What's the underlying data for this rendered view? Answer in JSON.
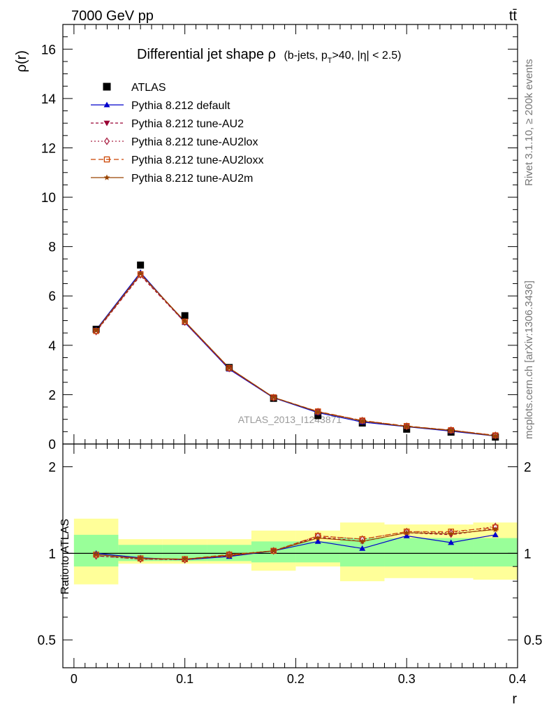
{
  "header": {
    "energy": "7000 GeV pp",
    "process": "tt̄",
    "side_rivet": "Rivet 3.1.10, ≥ 200k events",
    "side_mcplots": "mcplots.cern.ch [arXiv:1306.3436]",
    "watermark": "ATLAS_2013_I1243871"
  },
  "chart_data": {
    "type": "line",
    "title_main": "Differential jet shape ρ",
    "title_detail": "(b-jets, p",
    "title_sub": "T",
    "title_tail": ">40, |η| < 2.5)",
    "ylabel": "ρ(r)",
    "xlabel": "r",
    "ratio_ylabel": "Ratio to ATLAS",
    "xlim": [
      -0.01,
      0.4
    ],
    "ylim": [
      0,
      17
    ],
    "ratio_ylim": [
      0.4,
      2.4
    ],
    "grid": false,
    "legend_position": "top-left",
    "x_ticks": [
      "0",
      "0.1",
      "0.2",
      "0.3",
      "0.4"
    ],
    "y_ticks": [
      "0",
      "2",
      "4",
      "6",
      "8",
      "10",
      "12",
      "14",
      "16"
    ],
    "ratio_y_ticks": [
      "0.5",
      "1",
      "2"
    ],
    "x": [
      0.02,
      0.06,
      0.1,
      0.14,
      0.18,
      0.22,
      0.26,
      0.3,
      0.34,
      0.38
    ],
    "bin_edges": [
      0,
      0.04,
      0.08,
      0.12,
      0.16,
      0.2,
      0.24,
      0.28,
      0.32,
      0.36,
      0.4
    ],
    "data_series": {
      "name": "ATLAS",
      "values": [
        4.65,
        7.25,
        5.2,
        3.1,
        1.85,
        1.15,
        0.85,
        0.6,
        0.48,
        0.28
      ],
      "band_inner": [
        [
          0.9,
          1.16
        ],
        [
          0.94,
          1.07
        ],
        [
          0.94,
          1.07
        ],
        [
          0.94,
          1.07
        ],
        [
          0.93,
          1.1
        ],
        [
          0.93,
          1.1
        ],
        [
          0.9,
          1.13
        ],
        [
          0.9,
          1.13
        ],
        [
          0.9,
          1.13
        ],
        [
          0.9,
          1.13
        ]
      ],
      "band_outer": [
        [
          0.78,
          1.32
        ],
        [
          0.92,
          1.12
        ],
        [
          0.92,
          1.12
        ],
        [
          0.92,
          1.12
        ],
        [
          0.87,
          1.2
        ],
        [
          0.9,
          1.2
        ],
        [
          0.8,
          1.28
        ],
        [
          0.82,
          1.26
        ],
        [
          0.82,
          1.26
        ],
        [
          0.81,
          1.28
        ]
      ]
    },
    "series": [
      {
        "name": "Pythia 8.212 default",
        "color": "#0000cc",
        "dash": "",
        "marker": "triangle-up",
        "values": [
          4.63,
          6.95,
          4.92,
          3.03,
          1.87,
          1.27,
          0.89,
          0.7,
          0.52,
          0.32
        ],
        "ratio": [
          1.0,
          0.965,
          0.95,
          0.975,
          1.02,
          1.1,
          1.04,
          1.15,
          1.09,
          1.16
        ]
      },
      {
        "name": "Pythia 8.212 tune-AU2",
        "color": "#990033",
        "dash": "4,3",
        "marker": "triangle-down",
        "values": [
          4.55,
          6.83,
          4.93,
          3.05,
          1.88,
          1.31,
          0.94,
          0.71,
          0.56,
          0.34
        ],
        "ratio": [
          0.98,
          0.955,
          0.95,
          0.98,
          1.02,
          1.14,
          1.1,
          1.18,
          1.16,
          1.22
        ]
      },
      {
        "name": "Pythia 8.212 tune-AU2lox",
        "color": "#aa2244",
        "dash": "2,3",
        "marker": "diamond",
        "values": [
          4.56,
          6.86,
          4.94,
          3.06,
          1.88,
          1.31,
          0.95,
          0.72,
          0.56,
          0.35
        ],
        "ratio": [
          0.98,
          0.955,
          0.95,
          0.99,
          1.02,
          1.15,
          1.12,
          1.19,
          1.18,
          1.24
        ]
      },
      {
        "name": "Pythia 8.212 tune-AU2loxx",
        "color": "#cc4400",
        "dash": "7,4",
        "marker": "square",
        "values": [
          4.58,
          6.88,
          4.96,
          3.08,
          1.89,
          1.32,
          0.95,
          0.73,
          0.56,
          0.35
        ],
        "ratio": [
          0.99,
          0.96,
          0.955,
          0.99,
          1.02,
          1.15,
          1.12,
          1.19,
          1.19,
          1.23
        ]
      },
      {
        "name": "Pythia 8.212 tune-AU2m",
        "color": "#994400",
        "dash": "",
        "marker": "star",
        "values": [
          4.6,
          6.9,
          4.97,
          3.08,
          1.89,
          1.3,
          0.93,
          0.71,
          0.55,
          0.33
        ],
        "ratio": [
          0.99,
          0.96,
          0.955,
          0.985,
          1.02,
          1.13,
          1.1,
          1.18,
          1.17,
          1.21
        ]
      }
    ]
  }
}
